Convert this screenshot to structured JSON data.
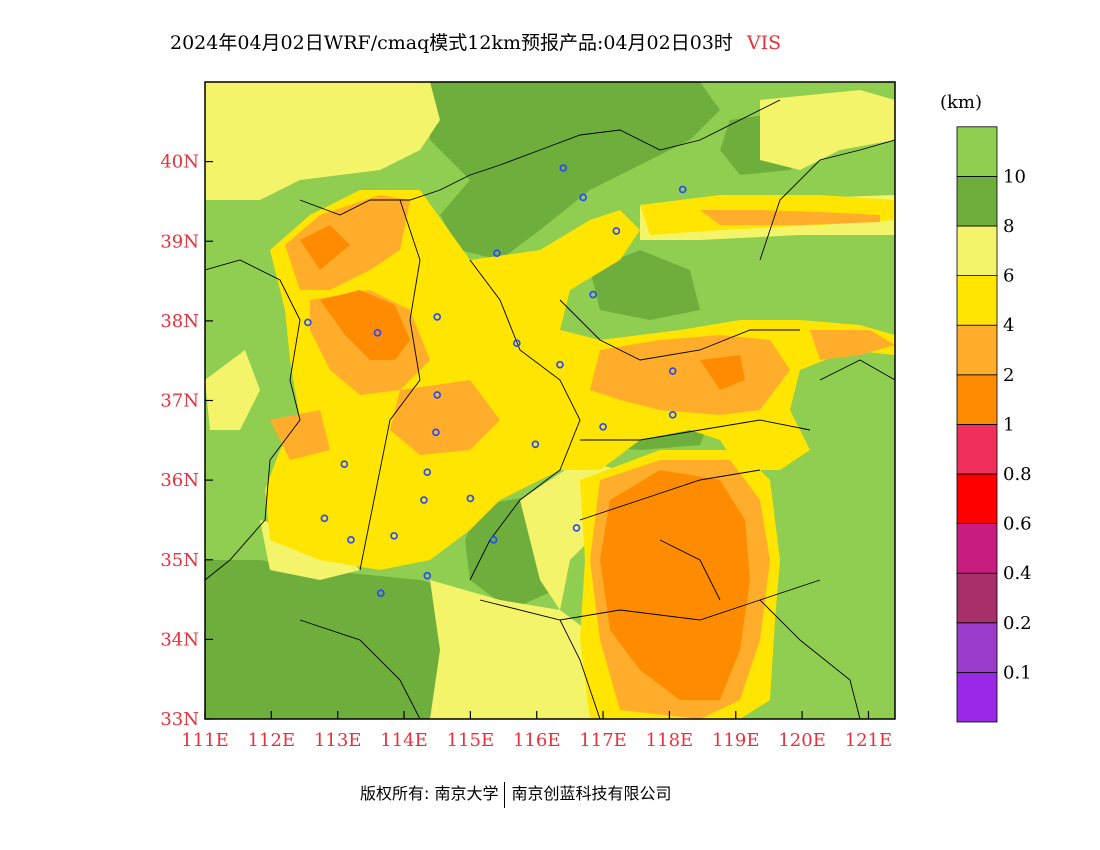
{
  "title": {
    "main": "2024年04月02日WRF/cmaq模式12km预报产品:04月02日03时",
    "variable": "VIS"
  },
  "unit": "(km)",
  "map": {
    "lon_range": [
      111,
      121.4
    ],
    "lat_range": [
      33,
      41
    ],
    "x_ticks": [
      "111E",
      "112E",
      "113E",
      "114E",
      "115E",
      "116E",
      "117E",
      "118E",
      "119E",
      "120E",
      "121E"
    ],
    "y_ticks": [
      "33N",
      "34N",
      "35N",
      "36N",
      "37N",
      "38N",
      "39N",
      "40N"
    ],
    "stations": [
      [
        116.4,
        39.92
      ],
      [
        116.7,
        39.55
      ],
      [
        118.2,
        39.65
      ],
      [
        117.2,
        39.13
      ],
      [
        115.4,
        38.85
      ],
      [
        116.85,
        38.33
      ],
      [
        112.55,
        37.98
      ],
      [
        113.6,
        37.85
      ],
      [
        114.5,
        38.05
      ],
      [
        115.7,
        37.72
      ],
      [
        116.35,
        37.45
      ],
      [
        118.05,
        37.37
      ],
      [
        114.5,
        37.07
      ],
      [
        114.48,
        36.6
      ],
      [
        117.0,
        36.67
      ],
      [
        118.05,
        36.82
      ],
      [
        115.98,
        36.45
      ],
      [
        113.1,
        36.2
      ],
      [
        114.35,
        36.1
      ],
      [
        114.3,
        35.75
      ],
      [
        115.0,
        35.77
      ],
      [
        112.8,
        35.52
      ],
      [
        113.85,
        35.3
      ],
      [
        113.2,
        35.25
      ],
      [
        115.35,
        35.25
      ],
      [
        116.6,
        35.4
      ],
      [
        114.35,
        34.8
      ],
      [
        113.65,
        34.58
      ]
    ]
  },
  "legend": {
    "colors": [
      "#9a28e6",
      "#9b3bcc",
      "#a8306a",
      "#c81c80",
      "#ff0000",
      "#f0305a",
      "#ff8c00",
      "#ffad2a",
      "#ffe500",
      "#f4f46a",
      "#6eae3c",
      "#8fce50"
    ],
    "labels": [
      "0.1",
      "0.2",
      "0.4",
      "0.6",
      "0.8",
      "1",
      "2",
      "4",
      "6",
      "8",
      "10"
    ]
  },
  "footer": {
    "left": "版权所有: 南京大学",
    "right": "南京创蓝科技有限公司"
  }
}
